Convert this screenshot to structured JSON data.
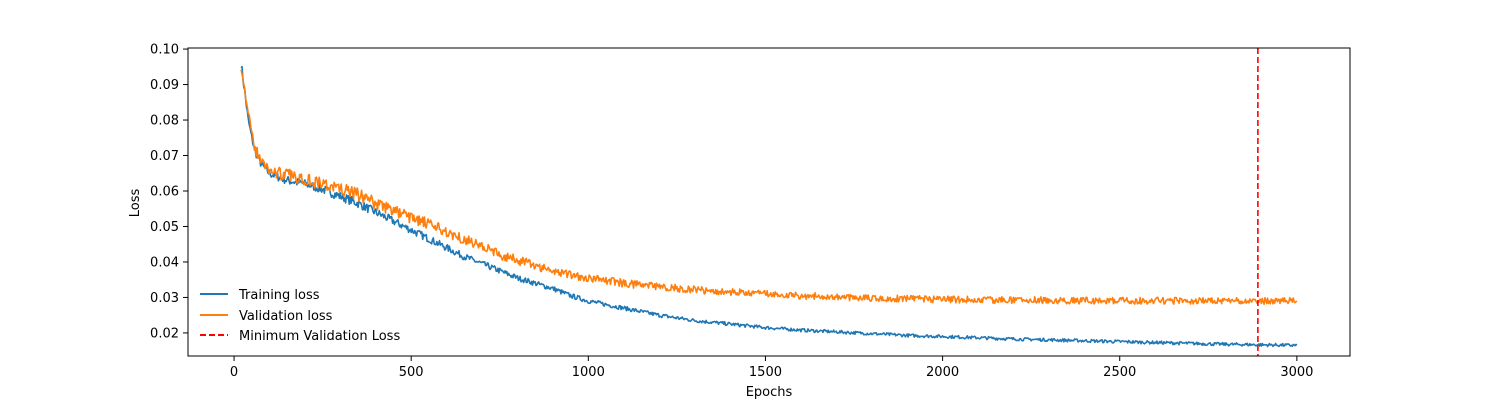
{
  "chart_data": {
    "type": "line",
    "title": "",
    "xlabel": "Epochs",
    "ylabel": "Loss",
    "xlim": [
      -130,
      3150
    ],
    "ylim": [
      0.0135,
      0.1003
    ],
    "xticks": [
      0,
      500,
      1000,
      1500,
      2000,
      2500,
      3000
    ],
    "xtick_labels": [
      "0",
      "500",
      "1000",
      "1500",
      "2000",
      "2500",
      "3000"
    ],
    "yticks": [
      0.02,
      0.03,
      0.04,
      0.05,
      0.06,
      0.07,
      0.08,
      0.09,
      0.1
    ],
    "ytick_labels": [
      "0.02",
      "0.03",
      "0.04",
      "0.05",
      "0.06",
      "0.07",
      "0.08",
      "0.09",
      "0.10"
    ],
    "grid": false,
    "legend_position": "lower-left",
    "series": [
      {
        "name": "Training loss",
        "color": "#1f77b4",
        "style": "solid",
        "x": [
          20,
          30,
          40,
          50,
          60,
          70,
          80,
          100,
          125,
          150,
          175,
          200,
          250,
          300,
          350,
          400,
          450,
          500,
          550,
          600,
          650,
          700,
          750,
          800,
          850,
          900,
          950,
          1000,
          1100,
          1200,
          1300,
          1400,
          1500,
          1600,
          1700,
          1800,
          1900,
          2000,
          2200,
          2400,
          2600,
          2800,
          3000
        ],
        "y": [
          0.096,
          0.088,
          0.08,
          0.075,
          0.071,
          0.069,
          0.067,
          0.065,
          0.064,
          0.063,
          0.0625,
          0.062,
          0.0605,
          0.0585,
          0.0565,
          0.054,
          0.0515,
          0.049,
          0.0465,
          0.044,
          0.0415,
          0.0395,
          0.0375,
          0.0355,
          0.034,
          0.0325,
          0.0305,
          0.029,
          0.027,
          0.025,
          0.0235,
          0.0225,
          0.0215,
          0.0208,
          0.0203,
          0.0198,
          0.0193,
          0.019,
          0.0183,
          0.0178,
          0.0173,
          0.0168,
          0.0165
        ]
      },
      {
        "name": "Validation loss",
        "color": "#ff7f0e",
        "style": "solid",
        "x": [
          20,
          30,
          40,
          50,
          60,
          70,
          80,
          100,
          125,
          150,
          175,
          200,
          250,
          300,
          350,
          400,
          450,
          500,
          550,
          600,
          650,
          700,
          750,
          800,
          850,
          900,
          950,
          1000,
          1100,
          1200,
          1300,
          1400,
          1500,
          1600,
          1700,
          1800,
          1900,
          2000,
          2200,
          2400,
          2600,
          2800,
          3000
        ],
        "y": [
          0.096,
          0.089,
          0.081,
          0.076,
          0.072,
          0.0695,
          0.068,
          0.066,
          0.065,
          0.0645,
          0.064,
          0.0635,
          0.062,
          0.0605,
          0.059,
          0.0565,
          0.0545,
          0.0525,
          0.0505,
          0.0485,
          0.0465,
          0.0445,
          0.042,
          0.0405,
          0.039,
          0.0375,
          0.0365,
          0.0355,
          0.034,
          0.033,
          0.0322,
          0.0315,
          0.031,
          0.0305,
          0.0302,
          0.0298,
          0.0296,
          0.0294,
          0.0293,
          0.0291,
          0.0291,
          0.029,
          0.029
        ]
      }
    ],
    "vline": {
      "name": "Minimum Validation Loss",
      "x": 2890,
      "color": "#ff0000",
      "style": "dashed"
    }
  }
}
